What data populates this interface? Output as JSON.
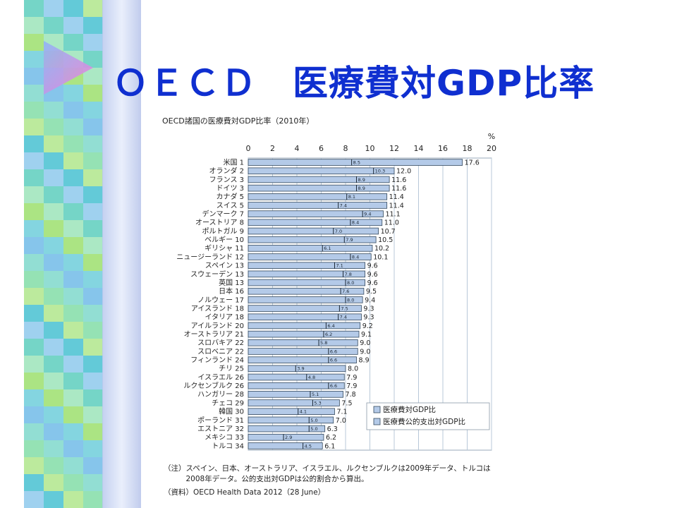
{
  "slide": {
    "title": "ＯＥＣＤ　医療費対GDP比率"
  },
  "chart_data": {
    "type": "bar",
    "orientation": "horizontal",
    "title": "OECD諸国の医療費対GDP比率（2010年）",
    "xunit": "%",
    "xlim": [
      0,
      20
    ],
    "xticks": [
      0,
      2,
      4,
      6,
      8,
      10,
      12,
      14,
      16,
      18,
      20
    ],
    "grid": true,
    "legend_position": "bottom-right",
    "colors": {
      "bar_fill": "#b4cae8",
      "bar_stroke": "#34495e",
      "grid": "#b8c8d8"
    },
    "categories": [
      "米国 1",
      "オランダ 2",
      "フランス 3",
      "ドイツ 3",
      "カナダ 5",
      "スイス 5",
      "デンマーク 7",
      "オーストリア 8",
      "ポルトガル 9",
      "ベルギー 10",
      "ギリシャ 11",
      "ニュージーランド 12",
      "スペイン 13",
      "スウェーデン 13",
      "英国 13",
      "日本 16",
      "ノルウェー 17",
      "アイスランド 18",
      "イタリア 18",
      "アイルランド 20",
      "オーストラリア 21",
      "スロバキア 22",
      "スロベニア 22",
      "フィンランド 24",
      "チリ 25",
      "イスラエル 26",
      "ルクセンブルク 26",
      "ハンガリー 28",
      "チェコ 29",
      "韓国 30",
      "ポーランド 31",
      "エストニア 32",
      "メキシコ 33",
      "トルコ 34"
    ],
    "series": [
      {
        "name": "医療費対GDP比",
        "values": [
          17.6,
          12.0,
          11.6,
          11.6,
          11.4,
          11.4,
          11.1,
          11.0,
          10.7,
          10.5,
          10.2,
          10.1,
          9.6,
          9.6,
          9.6,
          9.5,
          9.4,
          9.3,
          9.3,
          9.2,
          9.1,
          9.0,
          9.0,
          8.9,
          8.0,
          7.9,
          7.9,
          7.8,
          7.5,
          7.1,
          7.0,
          6.3,
          6.2,
          6.1
        ],
        "labels": [
          "17.6",
          "12.0",
          "11.6",
          "11.6",
          "11.4",
          "11.4",
          "11.1",
          "11.0",
          "10.7",
          "10.5",
          "10.2",
          "10.1",
          "9.6",
          "9.6",
          "9.6",
          "9.5",
          "9.4",
          "9.3",
          "9.3",
          "9.2",
          "9.1",
          "9.0",
          "9.0",
          "8.9",
          "8.0",
          "7.9",
          "7.9",
          "7.8",
          "7.5",
          "7.1",
          "7.0",
          "6.3",
          "6.2",
          "6.1"
        ]
      },
      {
        "name": "医療費公的支出対GDP比",
        "values": [
          8.5,
          10.3,
          8.9,
          8.9,
          8.1,
          7.4,
          9.4,
          8.4,
          7.0,
          7.9,
          6.1,
          8.4,
          7.1,
          7.8,
          8.0,
          7.6,
          8.0,
          7.5,
          7.4,
          6.4,
          6.2,
          5.8,
          6.6,
          6.6,
          3.9,
          4.8,
          6.6,
          5.1,
          5.3,
          4.1,
          5.0,
          5.0,
          2.9,
          4.5
        ],
        "labels": [
          "8.5",
          "10.3",
          "8.9",
          "8.9",
          "8.1",
          "7.4",
          "9.4",
          "8.4",
          "7.0",
          "7.9",
          "6.1",
          "8.4",
          "7.1",
          "7.8",
          "8.0",
          "7.6",
          "8.0",
          "7.5",
          "7.4",
          "6.4",
          "6.2",
          "5.8",
          "6.6",
          "6.6",
          "3.9",
          "4.8",
          "6.6",
          "5.1",
          "5.3",
          "4.1",
          "5.0",
          "5.0",
          "2.9",
          "4.5"
        ]
      }
    ]
  },
  "notes": {
    "note1": "（注）スペイン、日本、オーストラリア、イスラエル、ルクセンブルクは2009年データ、トルコは",
    "note2": "　　　2008年データ。公的支出対GDPは公的割合から算出。",
    "source": "（資料）OECD Health Data 2012（28 June）"
  }
}
